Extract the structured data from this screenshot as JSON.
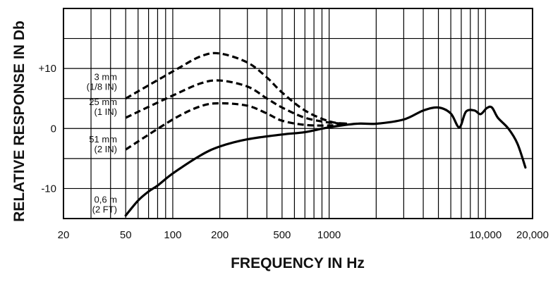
{
  "chart_data": {
    "type": "line",
    "xlabel": "FREQUENCY IN Hz",
    "ylabel": "RELATIVE RESPONSE IN Db",
    "x_scale": "log",
    "xlim": [
      20,
      20000
    ],
    "ylim": [
      -15,
      20
    ],
    "grid": true,
    "x_ticks": [
      {
        "value": 20,
        "label": "20"
      },
      {
        "value": 50,
        "label": "50"
      },
      {
        "value": 100,
        "label": "100"
      },
      {
        "value": 200,
        "label": "200"
      },
      {
        "value": 500,
        "label": "500"
      },
      {
        "value": 1000,
        "label": "1000"
      },
      {
        "value": 10000,
        "label": "10,000"
      },
      {
        "value": 20000,
        "label": "20,000"
      }
    ],
    "y_ticks": [
      {
        "value": 10,
        "label": "+10"
      },
      {
        "value": 0,
        "label": "0"
      },
      {
        "value": -10,
        "label": "-10"
      }
    ],
    "series": [
      {
        "name": "3 mm (1/8 IN)",
        "label_lines": [
          "3 mm",
          "(1/8 IN)"
        ],
        "style": "dashed",
        "x": [
          50,
          100,
          150,
          200,
          300,
          400,
          500,
          700,
          1000,
          1300
        ],
        "y": [
          5,
          9.5,
          12,
          12.5,
          11,
          8.5,
          6,
          3,
          1.2,
          0.8
        ]
      },
      {
        "name": "25 mm (1 IN)",
        "label_lines": [
          "25 mm",
          "(1 IN)"
        ],
        "style": "dashed",
        "x": [
          50,
          100,
          150,
          200,
          300,
          400,
          500,
          700,
          1000,
          1300
        ],
        "y": [
          1.8,
          5.5,
          7.5,
          8,
          7,
          5,
          3.5,
          1.8,
          1,
          0.8
        ]
      },
      {
        "name": "51 mm (2 IN)",
        "label_lines": [
          "51 mm",
          "(2 IN)"
        ],
        "style": "dashed",
        "x": [
          50,
          100,
          150,
          200,
          300,
          400,
          500,
          700,
          1000,
          1300
        ],
        "y": [
          -3.5,
          1.5,
          3.7,
          4.2,
          3.8,
          2.5,
          1.3,
          0.6,
          0.5,
          0.7
        ]
      },
      {
        "name": "0.6 m (2 FT)",
        "label_lines": [
          "0,6 m",
          "(2 FT)"
        ],
        "style": "solid",
        "x": [
          50,
          60,
          70,
          80,
          100,
          150,
          200,
          300,
          500,
          700,
          1000,
          1500,
          2000,
          3000,
          4000,
          5000,
          6000,
          6800,
          7500,
          8500,
          9300,
          10200,
          11000,
          12000,
          14000,
          16000,
          18000
        ],
        "y": [
          -14.5,
          -12,
          -10.5,
          -9.5,
          -7.5,
          -4.5,
          -3,
          -1.8,
          -1,
          -0.6,
          0.2,
          0.8,
          0.8,
          1.5,
          3,
          3.5,
          2.5,
          0.2,
          2.8,
          3,
          2.4,
          3.4,
          3.5,
          1.8,
          0,
          -2.5,
          -6.5
        ]
      }
    ]
  }
}
